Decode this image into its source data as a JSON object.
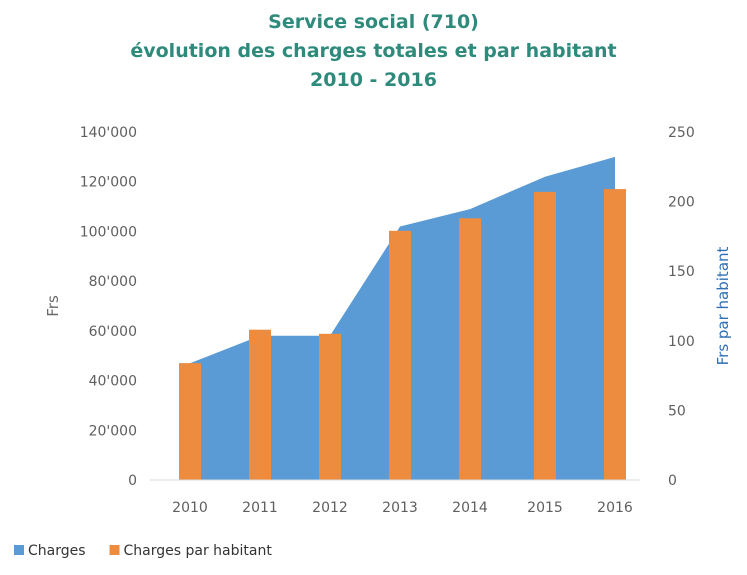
{
  "chart_data": {
    "type": "area",
    "title": [
      "Service social (710)",
      "évolution des charges totales et par habitant",
      "2010 - 2016"
    ],
    "title_color": "#2e8a7b",
    "categories": [
      "2010",
      "2011",
      "2012",
      "2013",
      "2014",
      "2015",
      "2016"
    ],
    "series": [
      {
        "name": "Charges",
        "type": "area",
        "axis": "left",
        "color": "#5b9bd5",
        "values": [
          47000,
          58000,
          58000,
          102000,
          109000,
          122000,
          130000
        ]
      },
      {
        "name": "Charges par habitant",
        "type": "bar",
        "axis": "right",
        "color": "#ed8b3f",
        "values": [
          84,
          108,
          105,
          179,
          188,
          207,
          209
        ]
      }
    ],
    "y_left": {
      "label": "Frs",
      "ylim": [
        0,
        140000
      ],
      "ticks": [
        "0",
        "20'000",
        "40'000",
        "60'000",
        "80'000",
        "100'000",
        "120'000",
        "140'000"
      ],
      "label_color": "#6a6a6a"
    },
    "y_right": {
      "label": "Frs par habitant",
      "ylim": [
        0,
        250
      ],
      "ticks": [
        "0",
        "50",
        "100",
        "150",
        "200",
        "250"
      ],
      "label_color": "#2f6fb5"
    },
    "grid": false,
    "legend_position": "bottom-left",
    "legend": [
      "Charges",
      "Charges par habitant"
    ]
  }
}
